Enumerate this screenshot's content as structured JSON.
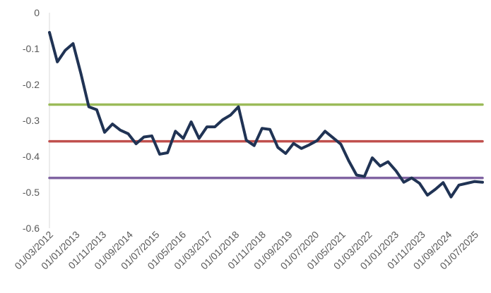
{
  "chart_data": {
    "type": "line",
    "title": "",
    "xlabel": "",
    "ylabel": "",
    "ylim": [
      -0.6,
      0
    ],
    "y_ticks": [
      "0",
      "-0.1",
      "-0.2",
      "-0.3",
      "-0.4",
      "-0.5",
      "-0.6"
    ],
    "x_tick_labels": [
      "01/03/2012",
      "01/01/2013",
      "01/11/2013",
      "01/09/2014",
      "01/07/2015",
      "01/05/2016",
      "01/03/2017",
      "01/01/2018",
      "01/11/2018",
      "01/09/2019",
      "01/07/2020",
      "01/05/2021",
      "01/03/2022",
      "01/01/2023",
      "01/11/2023",
      "01/09/2024",
      "01/07/2025"
    ],
    "grid": false,
    "legend": "none",
    "series": [
      {
        "color": "#203354",
        "values": [
          -0.055,
          -0.137,
          -0.105,
          -0.086,
          -0.17,
          -0.262,
          -0.27,
          -0.333,
          -0.31,
          -0.327,
          -0.337,
          -0.365,
          -0.346,
          -0.343,
          -0.394,
          -0.39,
          -0.33,
          -0.35,
          -0.304,
          -0.35,
          -0.318,
          -0.318,
          -0.298,
          -0.285,
          -0.262,
          -0.355,
          -0.37,
          -0.322,
          -0.325,
          -0.375,
          -0.392,
          -0.364,
          -0.378,
          -0.368,
          -0.356,
          -0.33,
          -0.348,
          -0.366,
          -0.412,
          -0.452,
          -0.456,
          -0.404,
          -0.427,
          -0.415,
          -0.44,
          -0.472,
          -0.46,
          -0.475,
          -0.508,
          -0.492,
          -0.473,
          -0.513,
          -0.48,
          -0.475,
          -0.47,
          -0.472
        ]
      },
      {
        "color": "#9BBB59",
        "values": [
          -0.256,
          -0.256
        ]
      },
      {
        "color": "#C0504D",
        "values": [
          -0.358,
          -0.358
        ]
      },
      {
        "color": "#8064A2",
        "values": [
          -0.46,
          -0.46
        ]
      }
    ]
  }
}
